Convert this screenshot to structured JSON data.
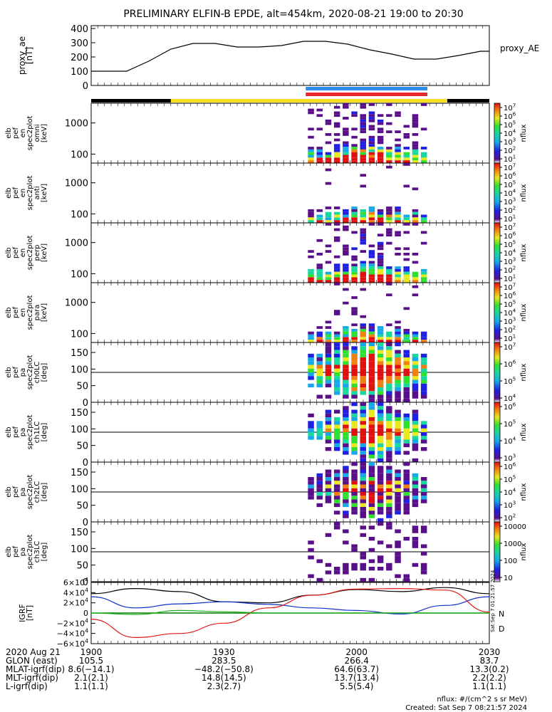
{
  "title": "PRELIMINARY ELFIN-B EPDE, alt=454km, 2020-08-21 19:00 to 20:30",
  "colors": {
    "black": "#000000",
    "yellow": "#f5e024",
    "blue_bar": "#2b8ee8",
    "red_bar": "#e8262b",
    "grf_x": "#000000",
    "grf_y": "#1030c8",
    "grf_z": "#e01818",
    "grf_g": "#20b020",
    "grf_zero": "#008000"
  },
  "chart_data": [
    {
      "type": "line",
      "id": "proxy_ae",
      "ylabel": "proxy_ae\n[nT]",
      "yticks": [
        "400",
        "300",
        "200",
        "100",
        "0"
      ],
      "ylim": [
        0,
        420
      ],
      "legend": "proxy_AE",
      "x_minutes": [
        0,
        8,
        13,
        18,
        23,
        28,
        33,
        38,
        43,
        48,
        53,
        58,
        63,
        68,
        73,
        78,
        83,
        88,
        90
      ],
      "values": [
        100,
        100,
        170,
        255,
        295,
        295,
        270,
        270,
        280,
        310,
        310,
        290,
        250,
        220,
        185,
        185,
        210,
        240,
        240
      ]
    },
    {
      "type": "heatmap",
      "id": "spec_omni",
      "ylabel": "elb\npef\nen\nspec2plot\nomni\n[keV]",
      "yticks": [
        "1000",
        "100"
      ],
      "cbar_ticks": [
        "10^7",
        "10^6",
        "10^5",
        "10^4",
        "10^3",
        "10^2",
        "10^1"
      ],
      "cbar_label": "nflux"
    },
    {
      "type": "heatmap",
      "id": "spec_anti",
      "ylabel": "elb\npef\nen\nspec2plot\nanti\n[keV]",
      "yticks": [
        "1000",
        "100"
      ],
      "cbar_ticks": [
        "10^7",
        "10^6",
        "10^5",
        "10^4",
        "10^3",
        "10^2",
        "10^1"
      ],
      "cbar_label": "nflux"
    },
    {
      "type": "heatmap",
      "id": "spec_perp",
      "ylabel": "elb\npef\nen\nspec2plot\nperp\n[keV]",
      "yticks": [
        "1000",
        "100"
      ],
      "cbar_ticks": [
        "10^7",
        "10^6",
        "10^5",
        "10^4",
        "10^3",
        "10^2",
        "10^1"
      ],
      "cbar_label": "nflux"
    },
    {
      "type": "heatmap",
      "id": "spec_para",
      "ylabel": "elb\npef\nen\nspec2plot\npara\n[keV]",
      "yticks": [
        "1000",
        "100"
      ],
      "cbar_ticks": [
        "10^7",
        "10^6",
        "10^5",
        "10^4",
        "10^3",
        "10^2",
        "10^1"
      ],
      "cbar_label": "nflux"
    },
    {
      "type": "heatmap",
      "id": "pa_ch0",
      "ylabel": "elb\npef\npa\nspec2plot\nch0LC\n[deg]",
      "yticks": [
        "150",
        "100",
        "50",
        "0"
      ],
      "cbar_ticks": [
        "10^7",
        "10^6",
        "10^5",
        "10^4"
      ],
      "cbar_label": "nflux"
    },
    {
      "type": "heatmap",
      "id": "pa_ch1",
      "ylabel": "elb\npef\npa\nspec2plot\nch1LC\n[deg]",
      "yticks": [
        "150",
        "100",
        "50",
        "0"
      ],
      "cbar_ticks": [
        "10^6",
        "10^5",
        "10^4",
        "10^3"
      ],
      "cbar_label": "nflux"
    },
    {
      "type": "heatmap",
      "id": "pa_ch2",
      "ylabel": "elb\npef\npa\nspec2plot\nch2LC\n[deg]",
      "yticks": [
        "150",
        "100",
        "50",
        "0"
      ],
      "cbar_ticks": [
        "10^6",
        "10^5",
        "10^4",
        "10^3",
        "10^2"
      ],
      "cbar_label": "nflux"
    },
    {
      "type": "heatmap",
      "id": "pa_ch3",
      "ylabel": "elb\npef\npa\nspec2plot\nch3LC\n[deg]",
      "yticks": [
        "150",
        "100",
        "50",
        "0"
      ],
      "cbar_ticks": [
        "10000",
        "1000",
        "100",
        "10"
      ],
      "cbar_label": "nflux"
    },
    {
      "type": "line",
      "id": "grf",
      "ylabel": "IGRF\n[nT]",
      "yticks": [
        "6×10^4",
        "4×10^4",
        "2×10^4",
        "0",
        "−2×10^4",
        "−4×10^4",
        "−6×10^4"
      ],
      "ylim": [
        -60000,
        60000
      ],
      "legend": [
        "N",
        "D"
      ],
      "x_minutes": [
        0,
        10,
        20,
        30,
        40,
        50,
        60,
        70,
        80,
        90
      ],
      "series": [
        {
          "values": [
            38000,
            48000,
            42000,
            22000,
            20000,
            35000,
            46000,
            42000,
            50000,
            38000
          ]
        },
        {
          "values": [
            32000,
            10000,
            18000,
            22000,
            17000,
            10000,
            5000,
            -2000,
            15000,
            32000
          ]
        },
        {
          "values": [
            -12000,
            -48000,
            -40000,
            -20000,
            10000,
            35000,
            47000,
            48000,
            45000,
            2000
          ]
        },
        {
          "values": [
            0,
            -3000,
            5000,
            2500,
            0,
            0,
            0,
            0,
            0,
            0
          ]
        }
      ]
    }
  ],
  "bottom_axis": {
    "row_labels": [
      "2020 Aug 21",
      "GLON (east)",
      "MLAT-igrf(dip)",
      "MLT-igrf(dip)",
      "L-igrf(dip)"
    ],
    "ticks": [
      "1900",
      "1930",
      "2000",
      "2030"
    ],
    "glon": [
      "105.5",
      "283.5",
      "266.4",
      "83.7"
    ],
    "mlat": [
      "8.6(−14.1)",
      "−48.2(−50.8)",
      "64.6(63.7)",
      "13.3(0.2)"
    ],
    "mlt": [
      "2.1(2.1)",
      "14.8(14.5)",
      "13.7(13.4)",
      "2.2(2.2)"
    ],
    "lshell": [
      "1.1(1.1)",
      "2.3(2.7)",
      "5.5(5.4)",
      "1.1(1.1)"
    ]
  },
  "side_stamp": "Sat Sep  7 01:21:57 2024",
  "footer": {
    "units": "nflux: #/(cm^2 s sr MeV)",
    "created": "Created: Sat Sep  7 08:21:57 2024"
  }
}
